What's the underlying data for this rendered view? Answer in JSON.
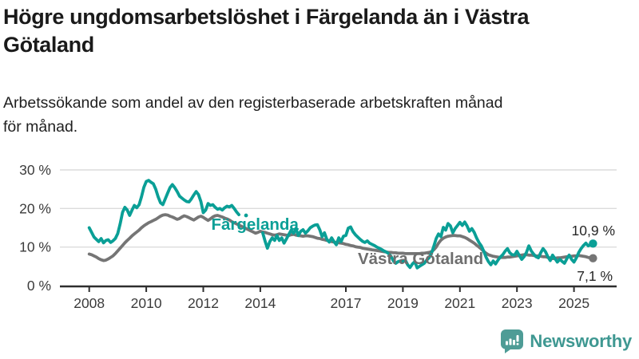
{
  "header": {
    "title": "Högre ungdomsarbetslöshet i Färgelanda än i Västra Götaland",
    "subtitle": "Arbetssökande som andel av den registerbaserade arbetskraften månad för månad."
  },
  "footer": {
    "brand": "Newsworthy",
    "logo_icon": "bar-chart-speech-bubble",
    "logo_color": "#4e9c96",
    "text_color": "#3f9892"
  },
  "chart_data": {
    "type": "line",
    "title": "Högre ungdomsarbetslöshet i Färgelanda än i Västra Götaland",
    "subtitle": "Arbetssökande som andel av den registerbaserade arbetskraften månad för månad.",
    "grid": "horizontal-only",
    "legend_position": "inline-labels-on-lines",
    "x_axis": {
      "ticks": [
        2008,
        2010,
        2012,
        2014,
        2017,
        2019,
        2021,
        2023,
        2025
      ],
      "labels": [
        "2008",
        "2010",
        "2012",
        "2014",
        "2017",
        "2019",
        "2021",
        "2023",
        "2025"
      ],
      "range_years": [
        2008,
        2025.75
      ]
    },
    "y_axis": {
      "ticks": [
        0,
        10,
        20,
        30
      ],
      "labels": [
        "0 %",
        "10 %",
        "20 %",
        "30 %"
      ],
      "range": [
        0,
        30
      ],
      "unit": "%"
    },
    "series": [
      {
        "name": "Västra Götaland",
        "label": "Västra Götaland",
        "color": "#757575",
        "label_color": "#6e6e6e",
        "end_label": "7,1 %",
        "end_value": 7.1,
        "points": {
          "start_year": 2008,
          "step_months": 1,
          "values": [
            8.2,
            8.0,
            7.7,
            7.4,
            7.0,
            6.7,
            6.5,
            6.6,
            6.9,
            7.3,
            7.7,
            8.3,
            9.0,
            9.7,
            10.4,
            11.1,
            11.7,
            12.3,
            12.9,
            13.4,
            13.9,
            14.4,
            15.0,
            15.5,
            15.9,
            16.3,
            16.6,
            16.9,
            17.2,
            17.6,
            18.0,
            18.3,
            18.4,
            18.3,
            18.0,
            17.8,
            17.5,
            17.2,
            17.4,
            17.8,
            18.1,
            17.9,
            17.6,
            17.3,
            17.0,
            17.4,
            17.8,
            18.0,
            17.7,
            17.3,
            16.9,
            17.3,
            17.8,
            18.1,
            18.2,
            18.0,
            17.8,
            17.5,
            17.3,
            17.0,
            16.6,
            16.3,
            16.0,
            15.7,
            15.4,
            15.1,
            14.8,
            14.5,
            14.2,
            13.9,
            13.6,
            13.8,
            14.1,
            13.9,
            13.8,
            13.6,
            13.4,
            13.2,
            13.1,
            13.2,
            13.4,
            13.3,
            13.2,
            13.1,
            13.0,
            13.2,
            13.3,
            13.1,
            13.0,
            12.9,
            12.8,
            12.9,
            12.9,
            12.8,
            12.7,
            12.5,
            12.3,
            12.2,
            12.0,
            11.9,
            11.7,
            11.6,
            11.4,
            11.3,
            11.2,
            11.1,
            11.0,
            10.9,
            10.7,
            10.6,
            10.4,
            10.3,
            10.1,
            10.0,
            9.9,
            9.7,
            9.6,
            9.5,
            9.4,
            9.3,
            9.2,
            9.1,
            9.0,
            8.9,
            8.8,
            8.7,
            8.6,
            8.6,
            8.5,
            8.5,
            8.4,
            8.4,
            8.4,
            8.3,
            8.3,
            8.3,
            8.3,
            8.3,
            8.3,
            8.3,
            8.4,
            8.4,
            8.5,
            8.6,
            8.8,
            9.3,
            10.0,
            11.0,
            11.8,
            12.3,
            12.6,
            12.8,
            12.9,
            13.0,
            13.0,
            12.9,
            12.9,
            12.7,
            12.5,
            12.2,
            11.8,
            11.4,
            11.0,
            10.5,
            10.0,
            9.5,
            8.9,
            8.4,
            8.0,
            7.8,
            7.6,
            7.5,
            7.4,
            7.3,
            7.3,
            7.3,
            7.4,
            7.4,
            7.5,
            7.6,
            7.7,
            7.8,
            7.9,
            8.0,
            8.0,
            7.9,
            7.9,
            7.8,
            7.7,
            7.7,
            7.6,
            7.5,
            7.5,
            7.3,
            7.2,
            7.0,
            7.1,
            7.2,
            7.2,
            7.3,
            7.4,
            7.5,
            7.6,
            7.6,
            7.7,
            7.7,
            7.8,
            7.7,
            7.6,
            7.5,
            7.3,
            7.2,
            7.1
          ]
        }
      },
      {
        "name": "Färgelanda",
        "label": "Färgelanda",
        "color": "#0a9f96",
        "label_color": "#0a9f96",
        "end_label": "10,9 %",
        "end_value": 10.9,
        "points": {
          "start_year": 2008,
          "step_months": 1,
          "values": [
            15.0,
            13.8,
            12.6,
            12.0,
            11.4,
            12.2,
            11.1,
            11.7,
            11.9,
            11.2,
            11.6,
            12.2,
            13.5,
            16.0,
            19.0,
            20.3,
            19.6,
            18.2,
            19.6,
            20.8,
            20.2,
            21.0,
            23.0,
            25.5,
            27.0,
            27.3,
            26.8,
            26.4,
            25.0,
            23.0,
            21.5,
            21.0,
            22.5,
            24.0,
            25.4,
            26.2,
            25.4,
            24.4,
            23.2,
            22.7,
            22.2,
            21.8,
            21.7,
            22.5,
            23.5,
            24.4,
            23.6,
            21.8,
            18.9,
            19.6,
            21.3,
            20.8,
            21.0,
            20.3,
            19.8,
            20.0,
            19.6,
            20.2,
            20.6,
            20.4,
            20.8,
            20.0,
            19.1,
            18.4,
            null,
            null,
            18.2,
            null,
            null,
            null,
            null,
            null,
            null,
            13.7,
            11.5,
            9.7,
            11.4,
            12.4,
            11.7,
            13.0,
            11.7,
            12.4,
            11.0,
            12.1,
            13.3,
            14.4,
            13.6,
            14.8,
            13.0,
            14.1,
            14.5,
            13.6,
            14.2,
            15.0,
            15.4,
            15.7,
            15.8,
            14.5,
            12.7,
            13.7,
            12.0,
            11.3,
            12.4,
            11.4,
            10.6,
            12.4,
            11.4,
            12.8,
            13.0,
            14.9,
            15.2,
            14.0,
            13.2,
            12.6,
            12.0,
            11.5,
            11.2,
            11.6,
            11.0,
            10.7,
            10.4,
            10.0,
            9.7,
            9.4,
            9.0,
            8.7,
            8.3,
            7.6,
            6.4,
            5.8,
            6.2,
            6.4,
            6.3,
            6.6,
            5.4,
            4.7,
            5.6,
            6.2,
            4.6,
            5.0,
            5.4,
            5.8,
            6.6,
            7.2,
            8.3,
            10.2,
            12.2,
            13.4,
            12.7,
            15.1,
            14.4,
            16.1,
            15.5,
            13.7,
            14.8,
            15.6,
            16.4,
            15.6,
            16.5,
            15.5,
            14.1,
            14.8,
            13.8,
            12.4,
            11.2,
            10.3,
            9.0,
            7.4,
            6.2,
            5.4,
            6.4,
            5.6,
            6.6,
            7.4,
            8.0,
            8.9,
            9.6,
            8.5,
            8.0,
            7.9,
            8.9,
            7.8,
            6.8,
            7.5,
            8.6,
            10.3,
            9.0,
            8.2,
            7.5,
            7.2,
            8.5,
            9.6,
            8.8,
            7.5,
            6.5,
            7.9,
            7.0,
            6.1,
            6.8,
            6.3,
            5.8,
            7.0,
            7.9,
            6.8,
            6.1,
            7.2,
            8.6,
            9.6,
            10.4,
            11.0,
            10.3,
            10.6,
            10.9
          ]
        }
      }
    ],
    "style": {
      "gridline_color": "#dcdcdc",
      "axis_color": "#2e2e2e",
      "tick_label_color": "#3b3b3b",
      "end_label_color": "#262626"
    }
  }
}
